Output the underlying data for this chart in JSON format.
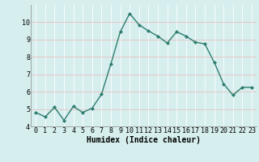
{
  "x": [
    0,
    1,
    2,
    3,
    4,
    5,
    6,
    7,
    8,
    9,
    10,
    11,
    12,
    13,
    14,
    15,
    16,
    17,
    18,
    19,
    20,
    21,
    22,
    23
  ],
  "y": [
    4.8,
    4.55,
    5.1,
    4.35,
    5.15,
    4.8,
    5.05,
    5.85,
    7.6,
    9.45,
    10.5,
    9.85,
    9.5,
    9.2,
    8.8,
    9.45,
    9.2,
    8.85,
    8.75,
    7.7,
    6.45,
    5.8,
    6.25,
    6.25
  ],
  "line_color": "#2e7d6e",
  "marker": "D",
  "marker_size": 2,
  "bg_color": "#d6eeee",
  "grid_color": "#b8d8d8",
  "xlabel": "Humidex (Indice chaleur)",
  "xlim": [
    -0.5,
    23.5
  ],
  "ylim": [
    4,
    11
  ],
  "xticks": [
    0,
    1,
    2,
    3,
    4,
    5,
    6,
    7,
    8,
    9,
    10,
    11,
    12,
    13,
    14,
    15,
    16,
    17,
    18,
    19,
    20,
    21,
    22,
    23
  ],
  "yticks": [
    4,
    5,
    6,
    7,
    8,
    9,
    10
  ],
  "tick_fontsize": 6,
  "xlabel_fontsize": 7,
  "line_width": 1.0
}
